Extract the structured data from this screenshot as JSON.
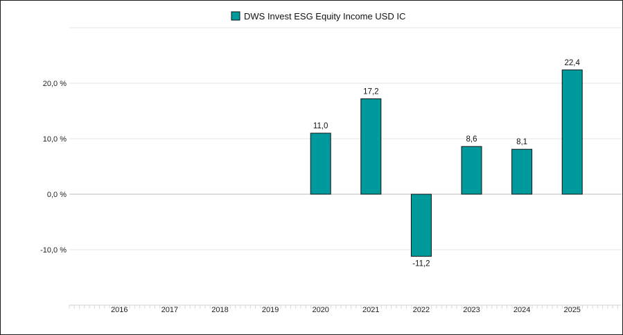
{
  "chart_data": {
    "type": "bar",
    "legend": {
      "label": "DWS Invest ESG Equity Income USD IC",
      "color": "#00999c",
      "position": "top"
    },
    "categories": [
      "2016",
      "2017",
      "2018",
      "2019",
      "2020",
      "2021",
      "2022",
      "2023",
      "2024",
      "2025"
    ],
    "series": [
      {
        "name": "DWS Invest ESG Equity Income USD IC",
        "values": [
          null,
          null,
          null,
          null,
          11.0,
          17.2,
          -11.2,
          8.6,
          8.1,
          22.4
        ],
        "labels": [
          "",
          "",
          "",
          "",
          "11,0",
          "17,2",
          "-11,2",
          "8,6",
          "8,1",
          "22,4"
        ]
      }
    ],
    "y_ticks": [
      {
        "value": 20,
        "label": "20,0 %"
      },
      {
        "value": 10,
        "label": "10,0 %"
      },
      {
        "value": 0,
        "label": "0,0 %"
      },
      {
        "value": -10,
        "label": "-10,0 %"
      }
    ],
    "ylim": [
      -20,
      30
    ],
    "grid": true,
    "colors": {
      "bar": "#00999c",
      "bar_stroke": "#111111",
      "grid": "#e6e6e6",
      "zero_line": "#bdbdbd"
    }
  }
}
